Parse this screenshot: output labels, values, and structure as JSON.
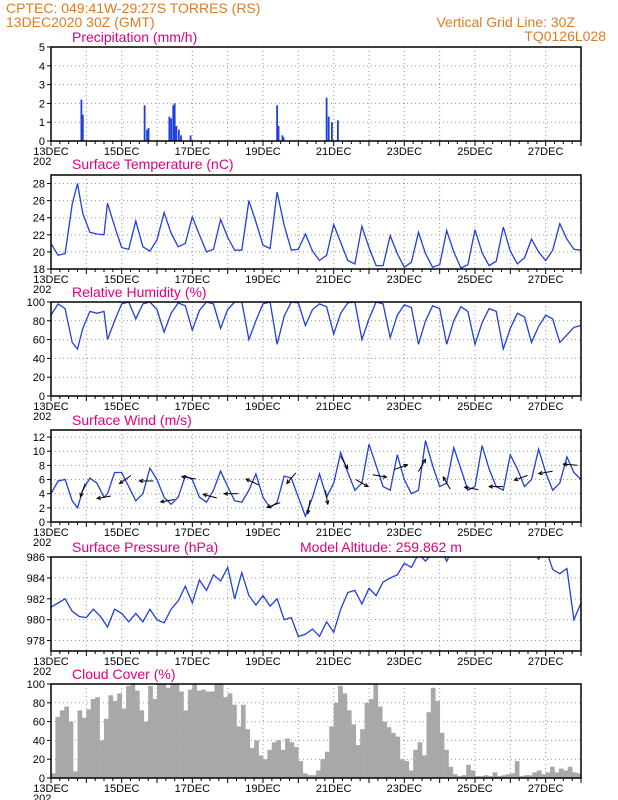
{
  "header": {
    "line1": "CPTEC:  049:41W-29:27S  TORRES (RS)",
    "line2": "13DEC2020 30Z (GMT)",
    "grid_note": "Vertical Grid Line: 30Z",
    "code": "TQ0126L028"
  },
  "colors": {
    "header": "#e07b22",
    "panel_title": "#e0007a",
    "series": "#1f3fe0",
    "cloud": "#a8a8a8",
    "grid": "#9a9a9a"
  },
  "x_axis": {
    "tick_labels": [
      "13DEC",
      "15DEC",
      "17DEC",
      "19DEC",
      "21DEC",
      "23DEC",
      "25DEC",
      "27DEC"
    ],
    "year_fragment": "202"
  },
  "chart_data": [
    {
      "type": "bar",
      "title": "Precipitation (mm/h)",
      "ylim": [
        0,
        5
      ],
      "yticks": [
        0,
        1,
        2,
        3,
        4,
        5
      ],
      "x_unit": "days since 13DEC 00Z",
      "x": [
        0.86,
        0.9,
        2.65,
        2.72,
        2.76,
        3.35,
        3.4,
        3.46,
        3.5,
        3.55,
        3.62,
        3.68,
        3.95,
        6.4,
        6.44,
        6.55,
        6.58,
        7.8,
        7.86,
        7.95,
        8.12
      ],
      "values": [
        2.2,
        1.4,
        1.9,
        0.6,
        0.7,
        1.3,
        1.2,
        1.9,
        2.0,
        0.8,
        0.6,
        0.3,
        0.3,
        1.9,
        0.8,
        0.3,
        0.2,
        2.3,
        1.3,
        1.0,
        1.1
      ]
    },
    {
      "type": "line",
      "title": "Surface Temperature (nC)",
      "ylim": [
        18,
        29
      ],
      "yticks": [
        18,
        20,
        22,
        24,
        26,
        28
      ],
      "x": [
        0,
        0.2,
        0.4,
        0.6,
        0.75,
        0.9,
        1.1,
        1.3,
        1.5,
        1.6,
        1.8,
        2.0,
        2.2,
        2.4,
        2.6,
        2.8,
        3.0,
        3.2,
        3.4,
        3.6,
        3.8,
        4.0,
        4.2,
        4.4,
        4.6,
        4.8,
        5.0,
        5.2,
        5.4,
        5.6,
        5.8,
        6.0,
        6.2,
        6.4,
        6.6,
        6.8,
        7.0,
        7.2,
        7.4,
        7.6,
        7.8,
        8.0,
        8.2,
        8.4,
        8.6,
        8.8,
        9.0,
        9.2,
        9.4,
        9.6,
        9.8,
        10.0,
        10.2,
        10.4,
        10.6,
        10.8,
        11.0,
        11.2,
        11.4,
        11.6,
        11.8,
        12.0,
        12.2,
        12.4,
        12.6,
        12.8,
        13.0,
        13.2,
        13.4,
        13.6,
        13.8,
        14.0,
        14.2,
        14.4,
        14.6,
        14.8,
        15.0
      ],
      "values": [
        21,
        19.6,
        19.8,
        25.6,
        28.0,
        24.5,
        22.3,
        22.1,
        22.0,
        25.7,
        23.0,
        20.5,
        20.3,
        23.6,
        20.6,
        20.1,
        21.4,
        24.6,
        22.2,
        20.6,
        21.0,
        24.1,
        22.0,
        20.0,
        20.3,
        23.8,
        21.7,
        20.2,
        20.2,
        26.0,
        23.5,
        20.8,
        20.4,
        27.0,
        23.1,
        20.2,
        20.3,
        22.1,
        20.1,
        19.0,
        19.6,
        23.2,
        21.1,
        19.0,
        18.6,
        23.0,
        20.5,
        18.4,
        18.4,
        21.9,
        19.8,
        18.2,
        18.8,
        22.3,
        19.8,
        18.2,
        18.5,
        22.5,
        20.0,
        18.1,
        18.5,
        22.6,
        19.9,
        18.4,
        18.9,
        22.9,
        20.1,
        18.6,
        19.3,
        21.5,
        20.0,
        19.0,
        20.2,
        23.3,
        21.5,
        20.3,
        20.2
      ]
    },
    {
      "type": "line",
      "title": "Relative Humidity (%)",
      "ylim": [
        0,
        100
      ],
      "yticks": [
        0,
        20,
        40,
        60,
        80,
        100
      ],
      "x": [
        0,
        0.2,
        0.4,
        0.6,
        0.75,
        0.9,
        1.1,
        1.3,
        1.5,
        1.6,
        1.8,
        2.0,
        2.2,
        2.4,
        2.6,
        2.8,
        3.0,
        3.2,
        3.4,
        3.6,
        3.8,
        4.0,
        4.2,
        4.4,
        4.6,
        4.8,
        5.0,
        5.2,
        5.4,
        5.6,
        5.8,
        6.0,
        6.2,
        6.4,
        6.6,
        6.8,
        7.0,
        7.2,
        7.4,
        7.6,
        7.8,
        8.0,
        8.2,
        8.4,
        8.6,
        8.8,
        9.0,
        9.2,
        9.4,
        9.6,
        9.8,
        10.0,
        10.2,
        10.4,
        10.6,
        10.8,
        11.0,
        11.2,
        11.4,
        11.6,
        11.8,
        12.0,
        12.2,
        12.4,
        12.6,
        12.8,
        13.0,
        13.2,
        13.4,
        13.6,
        13.8,
        14.0,
        14.2,
        14.4,
        14.6,
        14.8,
        15.0
      ],
      "values": [
        86,
        98,
        93,
        57,
        50,
        72,
        90,
        88,
        90,
        60,
        80,
        98,
        100,
        82,
        98,
        100,
        92,
        68,
        88,
        99,
        96,
        70,
        91,
        100,
        98,
        72,
        92,
        100,
        100,
        60,
        80,
        98,
        100,
        55,
        85,
        100,
        99,
        75,
        92,
        98,
        95,
        66,
        88,
        99,
        100,
        60,
        82,
        100,
        98,
        62,
        86,
        97,
        94,
        55,
        80,
        96,
        93,
        55,
        80,
        95,
        90,
        55,
        78,
        93,
        90,
        50,
        72,
        88,
        84,
        57,
        74,
        86,
        82,
        57,
        65,
        73,
        75
      ]
    },
    {
      "type": "line",
      "title": "Surface Wind (m/s)",
      "ylim": [
        0,
        13
      ],
      "yticks": [
        0,
        2,
        4,
        6,
        8,
        10,
        12
      ],
      "x": [
        0,
        0.2,
        0.4,
        0.6,
        0.75,
        0.9,
        1.1,
        1.3,
        1.5,
        1.6,
        1.8,
        2.0,
        2.2,
        2.4,
        2.6,
        2.8,
        3.0,
        3.2,
        3.4,
        3.6,
        3.8,
        4.0,
        4.2,
        4.4,
        4.6,
        4.8,
        5.0,
        5.2,
        5.4,
        5.6,
        5.8,
        6.0,
        6.2,
        6.4,
        6.6,
        6.8,
        7.0,
        7.2,
        7.4,
        7.6,
        7.8,
        8.0,
        8.2,
        8.4,
        8.6,
        8.8,
        9.0,
        9.2,
        9.4,
        9.6,
        9.8,
        10.0,
        10.2,
        10.4,
        10.6,
        10.8,
        11.0,
        11.2,
        11.4,
        11.6,
        11.8,
        12.0,
        12.2,
        12.4,
        12.6,
        12.8,
        13.0,
        13.2,
        13.4,
        13.6,
        13.8,
        14.0,
        14.2,
        14.4,
        14.6,
        14.8,
        15.0
      ],
      "values": [
        4.0,
        5.8,
        6.0,
        3.0,
        2.0,
        4.5,
        6.2,
        5.5,
        3.5,
        4.0,
        7.0,
        7.0,
        5.0,
        3.0,
        4.0,
        7.6,
        6.0,
        3.5,
        2.5,
        3.5,
        6.5,
        6.0,
        3.5,
        2.8,
        4.5,
        7.2,
        5.0,
        3.0,
        2.8,
        4.5,
        6.8,
        3.5,
        2.0,
        2.8,
        6.5,
        6.2,
        3.5,
        0.8,
        3.5,
        6.8,
        3.5,
        5.5,
        9.8,
        7.0,
        4.5,
        5.5,
        11.0,
        8.0,
        5.0,
        4.5,
        9.5,
        6.0,
        4.0,
        4.5,
        11.5,
        8.0,
        5.0,
        5.5,
        10.5,
        7.5,
        4.5,
        5.0,
        10.8,
        7.5,
        5.0,
        4.5,
        9.5,
        7.5,
        5.0,
        6.0,
        10.3,
        7.0,
        4.5,
        5.5,
        9.2,
        7.0,
        6.0
      ],
      "arrow_times": [
        0.9,
        1.5,
        2.1,
        2.7,
        3.3,
        3.9,
        4.5,
        5.1,
        5.7,
        6.3,
        6.8,
        7.3,
        7.8,
        8.3,
        8.8,
        9.3,
        9.9,
        10.5,
        11.2,
        11.9,
        12.6,
        13.3,
        14.0,
        14.7
      ],
      "arrow_dirs_deg": [
        250,
        190,
        215,
        180,
        190,
        170,
        165,
        180,
        155,
        200,
        230,
        260,
        280,
        300,
        330,
        350,
        20,
        60,
        120,
        170,
        180,
        200,
        190,
        175
      ]
    },
    {
      "type": "line",
      "title": "Surface Pressure (hPa)",
      "subtitle": "Model Altitude: 259.862 m",
      "ylim": [
        977,
        986
      ],
      "yticks": [
        978,
        980,
        982,
        984,
        986
      ],
      "x": [
        0,
        0.2,
        0.4,
        0.6,
        0.8,
        1.0,
        1.2,
        1.4,
        1.6,
        1.8,
        2.0,
        2.2,
        2.4,
        2.6,
        2.8,
        3.0,
        3.2,
        3.4,
        3.6,
        3.8,
        4.0,
        4.2,
        4.4,
        4.6,
        4.8,
        5.0,
        5.2,
        5.4,
        5.6,
        5.8,
        6.0,
        6.2,
        6.4,
        6.6,
        6.8,
        7.0,
        7.2,
        7.4,
        7.6,
        7.8,
        8.0,
        8.2,
        8.4,
        8.6,
        8.8,
        9.0,
        9.2,
        9.4,
        9.6,
        9.8,
        10.0,
        10.2,
        10.4,
        10.6,
        10.8,
        11.0,
        11.2,
        11.4,
        11.6,
        11.8,
        12.0,
        12.2,
        12.4,
        12.6,
        12.8,
        13.0,
        13.2,
        13.4,
        13.6,
        13.8,
        14.0,
        14.2,
        14.4,
        14.6,
        14.8,
        15.0
      ],
      "values": [
        981.2,
        981.6,
        982.0,
        980.8,
        980.3,
        980.2,
        981.0,
        980.3,
        979.3,
        981.0,
        980.6,
        979.8,
        980.6,
        979.8,
        981.0,
        980.0,
        979.7,
        981.0,
        981.8,
        983.2,
        981.6,
        983.8,
        982.8,
        984.3,
        983.7,
        985.0,
        982.0,
        984.5,
        982.3,
        981.4,
        982.3,
        981.3,
        982.0,
        980.0,
        980.2,
        978.4,
        978.6,
        979.1,
        978.4,
        979.8,
        978.8,
        981.0,
        982.6,
        982.8,
        981.5,
        983.0,
        982.3,
        983.6,
        984.0,
        984.3,
        985.4,
        985.0,
        986.3,
        985.6,
        986.4,
        987.0,
        985.6,
        987.0,
        986.5,
        987.0,
        987.0,
        986.8,
        987.0,
        986.6,
        987.0,
        987.0,
        986.6,
        986.4,
        987.0,
        985.8,
        986.8,
        984.8,
        984.4,
        984.9,
        980.0,
        981.6
      ]
    },
    {
      "type": "bar",
      "title": "Cloud Cover (%)",
      "ylim": [
        0,
        100
      ],
      "yticks": [
        0,
        20,
        40,
        60,
        80,
        100
      ],
      "x_start": 0,
      "x_step": 0.125,
      "values": [
        5,
        65,
        72,
        76,
        60,
        7,
        72,
        64,
        73,
        84,
        86,
        40,
        63,
        88,
        82,
        90,
        74,
        98,
        100,
        93,
        72,
        60,
        98,
        84,
        100,
        100,
        96,
        100,
        100,
        92,
        72,
        94,
        100,
        93,
        94,
        92,
        92,
        100,
        100,
        86,
        90,
        78,
        55,
        78,
        52,
        32,
        40,
        24,
        20,
        30,
        38,
        40,
        30,
        42,
        38,
        33,
        18,
        5,
        3,
        3,
        8,
        20,
        28,
        55,
        80,
        98,
        90,
        72,
        57,
        35,
        52,
        80,
        84,
        100,
        76,
        60,
        54,
        48,
        44,
        20,
        18,
        8,
        30,
        38,
        24,
        70,
        96,
        82,
        48,
        30,
        12,
        4,
        2,
        3,
        14,
        8,
        2,
        2,
        3,
        2,
        6,
        2,
        3,
        4,
        5,
        18,
        2,
        3,
        3,
        6,
        8,
        4,
        6,
        12,
        6,
        10,
        8,
        12,
        6,
        5
      ]
    }
  ]
}
